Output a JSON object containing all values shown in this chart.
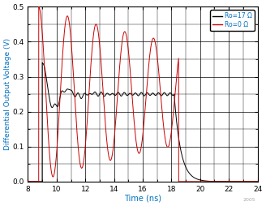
{
  "xlabel": "Time (ns)",
  "ylabel": "Differential Output Voltage (V)",
  "xlim": [
    8,
    24
  ],
  "ylim": [
    0,
    0.5
  ],
  "xticks": [
    8,
    10,
    12,
    14,
    16,
    18,
    20,
    22,
    24
  ],
  "yticks": [
    0,
    0.1,
    0.2,
    0.3,
    0.4,
    0.5
  ],
  "legend": [
    {
      "label": "Ro=17 Ω",
      "color": "#000000"
    },
    {
      "label": "Ro=0 Ω",
      "color": "#cc0000"
    }
  ],
  "grid_color": "#000000",
  "background_color": "#ffffff",
  "axis_label_color": "#0070c0",
  "tick_label_color": "#000000",
  "copyright": "2005"
}
